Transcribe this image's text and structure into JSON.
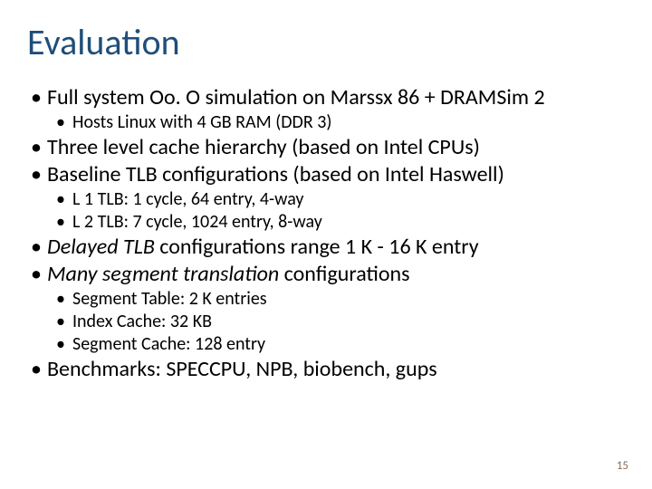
{
  "title": {
    "text": "Evaluation",
    "color": "#1f4e79",
    "fontsize": 40
  },
  "l1": {
    "fontsize": 24,
    "color": "#000000"
  },
  "l2": {
    "fontsize": 20,
    "color": "#000000"
  },
  "pagenum": {
    "text": "15",
    "color": "#8b6c5c",
    "fontsize": 13
  },
  "bullets": [
    {
      "items": [
        {
          "t": "Full system Oo. O simulation on Marssx 86 + DRAMSim 2",
          "i": false
        }
      ],
      "sub": [
        {
          "t": "Hosts Linux with 4 GB RAM (DDR 3)",
          "i": false
        }
      ]
    },
    {
      "items": [
        {
          "t": "Three level cache hierarchy (based on Intel CPUs)",
          "i": false
        }
      ]
    },
    {
      "items": [
        {
          "t": "Baseline TLB configurations (based on Intel Haswell)",
          "i": false
        }
      ],
      "sub": [
        {
          "t": "L 1 TLB: 1 cycle, 64 entry, 4-way",
          "i": false
        },
        {
          "t": "L 2 TLB: 7 cycle, 1024 entry, 8-way",
          "i": false
        }
      ]
    },
    {
      "items": [
        {
          "t": "Delayed TLB",
          "i": true
        },
        {
          "t": " configurations range 1 K - 16 K entry",
          "i": false
        }
      ]
    },
    {
      "items": [
        {
          "t": "Many segment translation",
          "i": true
        },
        {
          "t": " configurations",
          "i": false
        }
      ],
      "sub": [
        {
          "t": "Segment Table: 2 K entries",
          "i": false
        },
        {
          "t": "Index Cache: 32 KB",
          "i": false
        },
        {
          "t": "Segment Cache: 128 entry",
          "i": false
        }
      ]
    },
    {
      "items": [
        {
          "t": "Benchmarks: SPECCPU, NPB, biobench, gups",
          "i": false
        }
      ]
    }
  ]
}
